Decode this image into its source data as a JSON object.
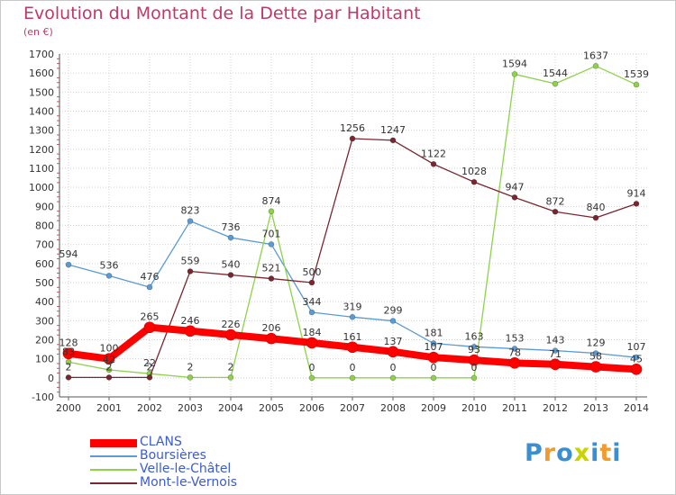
{
  "header": {
    "title": "Evolution du Montant de la Dette par Habitant",
    "subtitle": "(en €)"
  },
  "logo": {
    "text": "Proxiti",
    "letters": [
      {
        "ch": "P",
        "color": "#3a8fd0"
      },
      {
        "ch": "r",
        "color": "#f29a2e"
      },
      {
        "ch": "o",
        "color": "#3a8fd0"
      },
      {
        "ch": "x",
        "color": "#c8d400"
      },
      {
        "ch": "i",
        "color": "#3a8fd0"
      },
      {
        "ch": "t",
        "color": "#f29a2e"
      },
      {
        "ch": "i",
        "color": "#3a8fd0"
      }
    ]
  },
  "chart_data": {
    "type": "line",
    "title": "Evolution du Montant de la Dette par Habitant",
    "subtitle": "(en €)",
    "x": [
      "2000",
      "2001",
      "2002",
      "2003",
      "2004",
      "2005",
      "2006",
      "2007",
      "2008",
      "2009",
      "2010",
      "2011",
      "2012",
      "2013",
      "2014"
    ],
    "ylim": [
      -100,
      1700
    ],
    "yticks": [
      -100,
      0,
      100,
      200,
      300,
      400,
      500,
      600,
      700,
      800,
      900,
      1000,
      1100,
      1200,
      1300,
      1400,
      1500,
      1600,
      1700
    ],
    "grid": true,
    "legend_position": "bottom-left",
    "series": [
      {
        "name": "CLANS",
        "color": "#ff0000",
        "values": [
          128,
          100,
          265,
          246,
          226,
          206,
          184,
          161,
          137,
          107,
          93,
          78,
          71,
          58,
          45
        ],
        "labels": [
          "128",
          "100",
          "265",
          "246",
          "226",
          "206",
          "184",
          "161",
          "137",
          "107",
          "93",
          "78",
          "71",
          "58",
          "45"
        ]
      },
      {
        "name": "Boursières",
        "color": "#5a9bd5",
        "values": [
          594,
          536,
          476,
          823,
          736,
          701,
          344,
          319,
          299,
          181,
          163,
          153,
          143,
          129,
          107
        ],
        "labels": [
          "594",
          "536",
          "476",
          "823",
          "736",
          "701",
          "344",
          "319",
          "299",
          "181",
          "163",
          "153",
          "143",
          "129",
          "107"
        ]
      },
      {
        "name": "Velle-le-Châtel",
        "color": "#8ed24a",
        "values": [
          83,
          42,
          22,
          2,
          2,
          874,
          0,
          0,
          0,
          0,
          0,
          1594,
          1544,
          1637,
          1539
        ],
        "labels": [
          "83",
          "42",
          "22",
          "2",
          "2",
          "874",
          "0",
          "0",
          "0",
          "0",
          "0",
          "1594",
          "1544",
          "1637",
          "1539"
        ]
      },
      {
        "name": "Mont-le-Vernois",
        "color": "#7a2630",
        "values": [
          2,
          2,
          2,
          559,
          540,
          521,
          500,
          1256,
          1247,
          1122,
          1028,
          947,
          872,
          840,
          914
        ],
        "labels": [
          "2",
          "2",
          "2",
          "559",
          "540",
          "521",
          "500",
          "1256",
          "1247",
          "1122",
          "1028",
          "947",
          "872",
          "840",
          "914"
        ]
      }
    ]
  }
}
